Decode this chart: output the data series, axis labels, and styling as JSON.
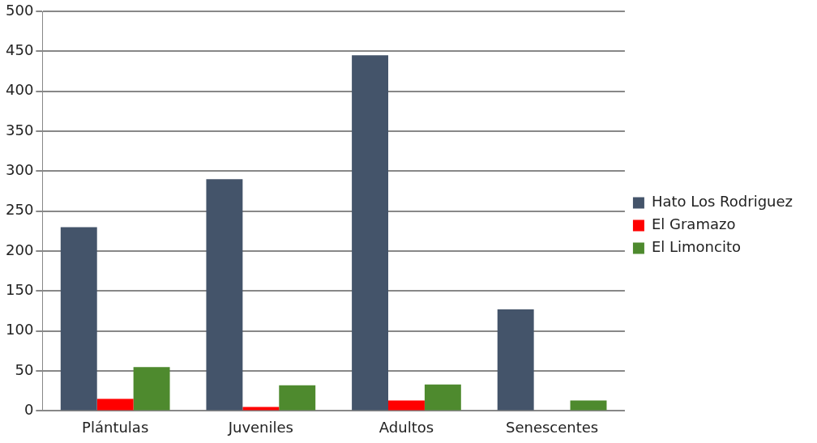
{
  "chart_data": {
    "type": "bar",
    "categories": [
      "Plántulas",
      "Juveniles",
      "Adultos",
      "Senescentes"
    ],
    "series": [
      {
        "name": "Hato Los Rodriguez",
        "color": "#44546a",
        "values": [
          230,
          290,
          445,
          127
        ]
      },
      {
        "name": "El Gramazo",
        "color": "#ff0000",
        "values": [
          15,
          5,
          13,
          0
        ]
      },
      {
        "name": "El Limoncito",
        "color": "#4e8a2e",
        "values": [
          55,
          32,
          33,
          13
        ]
      }
    ],
    "ylim": [
      0,
      500
    ],
    "yticks": [
      0,
      50,
      100,
      150,
      200,
      250,
      300,
      350,
      400,
      450,
      500
    ],
    "grid": "y",
    "legend": "right"
  }
}
